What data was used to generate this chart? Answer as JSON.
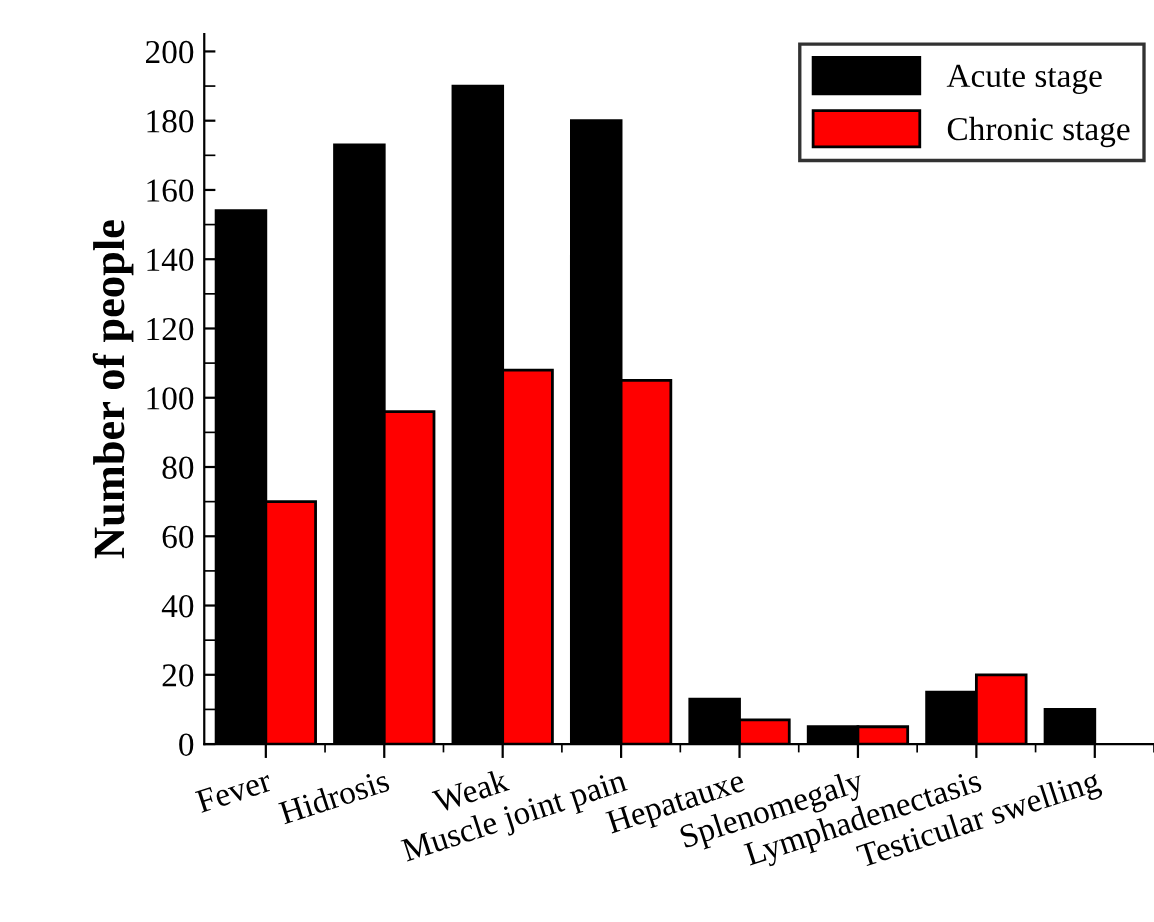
{
  "chart_data": {
    "type": "bar",
    "ylabel": "Number of people",
    "categories": [
      "Fever",
      "Hidrosis",
      "Weak",
      "Muscle joint pain",
      "Hepatauxe",
      "Splenomegaly",
      "Lymphadenectasis",
      "Testicular swelling"
    ],
    "series": [
      {
        "name": "Acute stage",
        "color": "#000000",
        "values": [
          154,
          173,
          190,
          180,
          13,
          5,
          15,
          10
        ]
      },
      {
        "name": "Chronic stage",
        "color": "#ff0000",
        "values": [
          70,
          96,
          108,
          105,
          7,
          5,
          20,
          null
        ]
      }
    ],
    "ylim": [
      0,
      205
    ],
    "yticks": [
      0,
      20,
      40,
      60,
      80,
      100,
      120,
      140,
      160,
      180,
      200
    ],
    "grid": false,
    "legend": "top right"
  }
}
